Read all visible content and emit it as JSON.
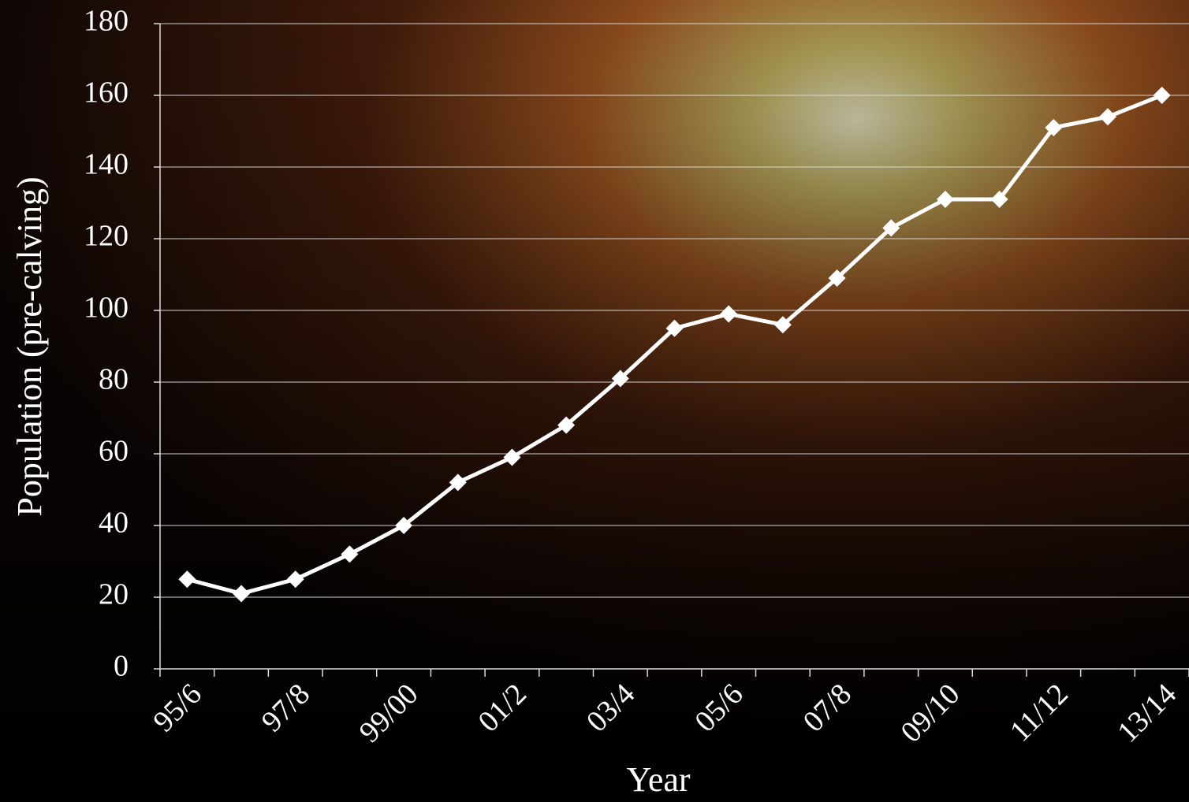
{
  "chart_data": {
    "type": "line",
    "ylabel": "Population (pre-calving)",
    "xlabel": "Year",
    "categories": [
      "95/6",
      null,
      "97/8",
      null,
      "99/00",
      null,
      "01/2",
      null,
      "03/4",
      null,
      "05/6",
      null,
      "07/8",
      null,
      "09/10",
      null,
      "11/12",
      null,
      "13/14"
    ],
    "values": [
      25,
      21,
      25,
      32,
      40,
      52,
      59,
      68,
      81,
      95,
      99,
      96,
      109,
      123,
      131,
      131,
      151,
      154,
      160
    ],
    "color": "#ffffff",
    "ylim": [
      0,
      180
    ],
    "yticks": [
      0,
      20,
      40,
      60,
      80,
      100,
      120,
      140,
      160,
      180
    ],
    "grid": true
  }
}
